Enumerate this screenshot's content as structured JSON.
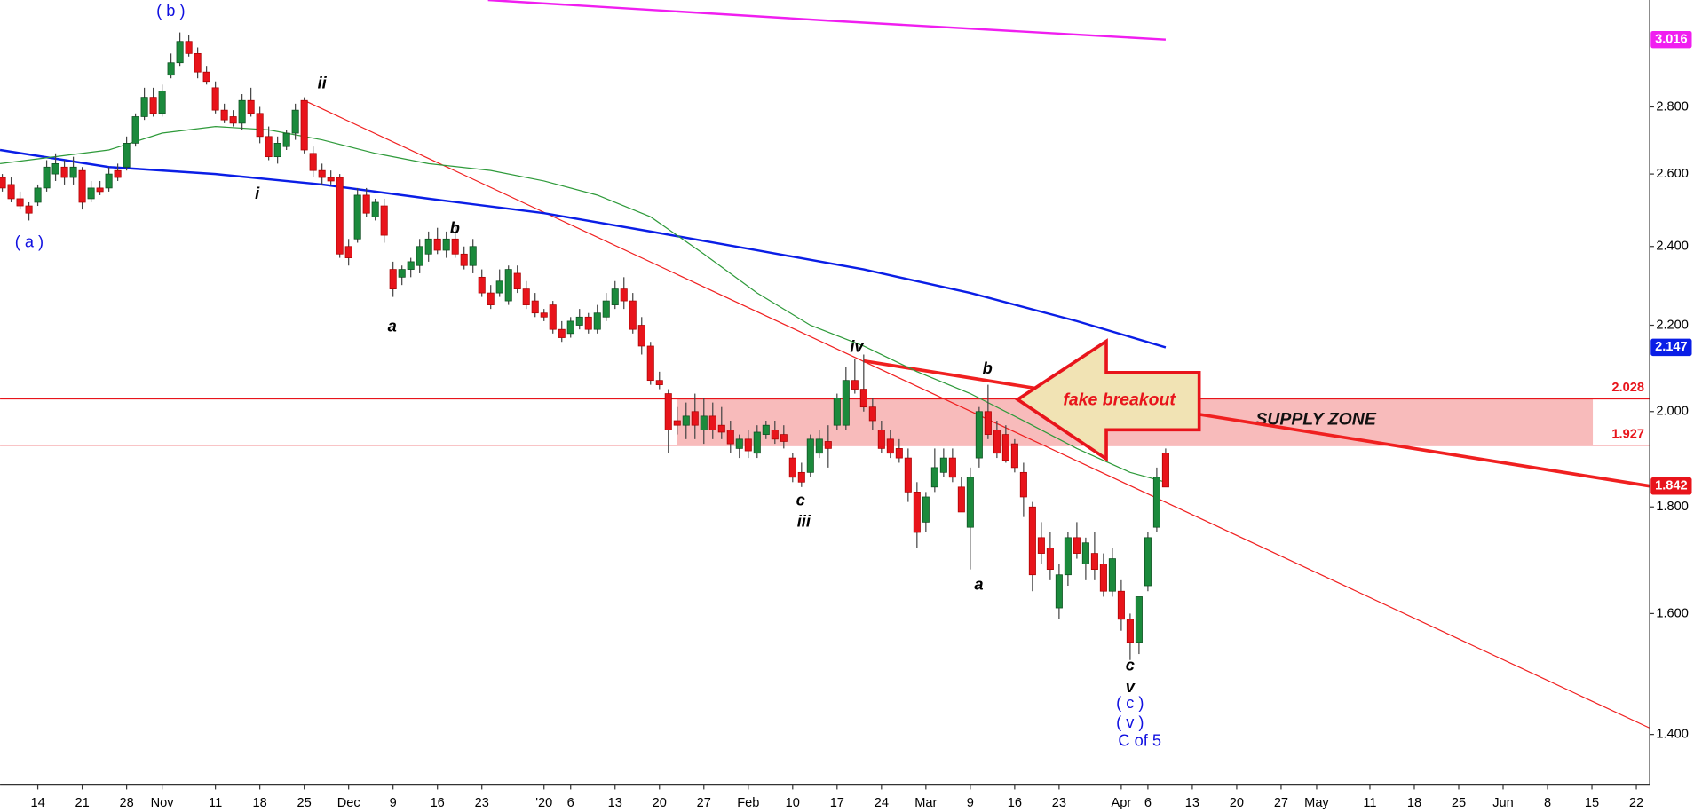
{
  "chart_data": {
    "type": "candlestick",
    "up_color": "#1b8a3c",
    "down_color": "#e8141b",
    "log_scale": true,
    "xlim": [
      -0.25,
      185.5
    ],
    "ylim": [
      1.324,
      3.151
    ],
    "xticks": [
      {
        "value": 4,
        "label": "14"
      },
      {
        "value": 9,
        "label": "21"
      },
      {
        "value": 14,
        "label": "28"
      },
      {
        "value": 18,
        "label": "Nov"
      },
      {
        "value": 24,
        "label": "11"
      },
      {
        "value": 29,
        "label": "18"
      },
      {
        "value": 34,
        "label": "25"
      },
      {
        "value": 39,
        "label": "Dec"
      },
      {
        "value": 44,
        "label": "9"
      },
      {
        "value": 49,
        "label": "16"
      },
      {
        "value": 54,
        "label": "23"
      },
      {
        "value": 61,
        "label": "'20"
      },
      {
        "value": 64,
        "label": "6"
      },
      {
        "value": 69,
        "label": "13"
      },
      {
        "value": 74,
        "label": "20"
      },
      {
        "value": 79,
        "label": "27"
      },
      {
        "value": 84,
        "label": "Feb"
      },
      {
        "value": 89,
        "label": "10"
      },
      {
        "value": 94,
        "label": "17"
      },
      {
        "value": 99,
        "label": "24"
      },
      {
        "value": 104,
        "label": "Mar"
      },
      {
        "value": 109,
        "label": "9"
      },
      {
        "value": 114,
        "label": "16"
      },
      {
        "value": 119,
        "label": "23"
      },
      {
        "value": 126,
        "label": "Apr"
      },
      {
        "value": 129,
        "label": "6"
      },
      {
        "value": 134,
        "label": "13"
      },
      {
        "value": 139,
        "label": "20"
      },
      {
        "value": 144,
        "label": "27"
      },
      {
        "value": 148,
        "label": "May"
      },
      {
        "value": 154,
        "label": "11"
      },
      {
        "value": 159,
        "label": "18"
      },
      {
        "value": 164,
        "label": "25"
      },
      {
        "value": 169,
        "label": "Jun"
      },
      {
        "value": 174,
        "label": "8"
      },
      {
        "value": 179,
        "label": "15"
      },
      {
        "value": 184,
        "label": "22"
      }
    ],
    "yticks": [
      {
        "value": 1.4,
        "label": "1.400"
      },
      {
        "value": 1.6,
        "label": "1.600"
      },
      {
        "value": 1.8,
        "label": "1.800"
      },
      {
        "value": 2.0,
        "label": "2.000"
      },
      {
        "value": 2.2,
        "label": "2.200"
      },
      {
        "value": 2.4,
        "label": "2.400"
      },
      {
        "value": 2.6,
        "label": "2.600"
      },
      {
        "value": 2.8,
        "label": "2.800"
      }
    ],
    "ohlc": [
      [
        2.59,
        2.6,
        2.55,
        2.56
      ],
      [
        2.57,
        2.59,
        2.52,
        2.53
      ],
      [
        2.53,
        2.55,
        2.5,
        2.51
      ],
      [
        2.51,
        2.52,
        2.47,
        2.49
      ],
      [
        2.52,
        2.57,
        2.51,
        2.56
      ],
      [
        2.56,
        2.64,
        2.55,
        2.62
      ],
      [
        2.6,
        2.66,
        2.58,
        2.63
      ],
      [
        2.62,
        2.64,
        2.57,
        2.59
      ],
      [
        2.59,
        2.65,
        2.57,
        2.62
      ],
      [
        2.61,
        2.62,
        2.5,
        2.52
      ],
      [
        2.53,
        2.58,
        2.52,
        2.56
      ],
      [
        2.56,
        2.58,
        2.54,
        2.55
      ],
      [
        2.56,
        2.62,
        2.55,
        2.6
      ],
      [
        2.61,
        2.63,
        2.58,
        2.59
      ],
      [
        2.62,
        2.71,
        2.61,
        2.69
      ],
      [
        2.69,
        2.78,
        2.68,
        2.77
      ],
      [
        2.77,
        2.86,
        2.76,
        2.83
      ],
      [
        2.83,
        2.86,
        2.77,
        2.78
      ],
      [
        2.78,
        2.87,
        2.77,
        2.85
      ],
      [
        2.9,
        2.97,
        2.89,
        2.94
      ],
      [
        2.94,
        3.04,
        2.93,
        3.01
      ],
      [
        3.01,
        3.03,
        2.96,
        2.97
      ],
      [
        2.97,
        2.99,
        2.89,
        2.91
      ],
      [
        2.91,
        2.93,
        2.87,
        2.88
      ],
      [
        2.86,
        2.88,
        2.78,
        2.79
      ],
      [
        2.79,
        2.81,
        2.75,
        2.76
      ],
      [
        2.77,
        2.79,
        2.74,
        2.75
      ],
      [
        2.75,
        2.84,
        2.73,
        2.82
      ],
      [
        2.82,
        2.86,
        2.77,
        2.78
      ],
      [
        2.78,
        2.8,
        2.69,
        2.71
      ],
      [
        2.71,
        2.74,
        2.64,
        2.65
      ],
      [
        2.65,
        2.71,
        2.63,
        2.69
      ],
      [
        2.68,
        2.73,
        2.67,
        2.72
      ],
      [
        2.72,
        2.81,
        2.7,
        2.79
      ],
      [
        2.82,
        2.83,
        2.66,
        2.67
      ],
      [
        2.66,
        2.68,
        2.59,
        2.61
      ],
      [
        2.61,
        2.63,
        2.57,
        2.59
      ],
      [
        2.59,
        2.61,
        2.57,
        2.58
      ],
      [
        2.59,
        2.6,
        2.37,
        2.38
      ],
      [
        2.4,
        2.42,
        2.35,
        2.37
      ],
      [
        2.42,
        2.56,
        2.41,
        2.54
      ],
      [
        2.54,
        2.56,
        2.48,
        2.49
      ],
      [
        2.48,
        2.53,
        2.47,
        2.52
      ],
      [
        2.51,
        2.53,
        2.41,
        2.43
      ],
      [
        2.34,
        2.36,
        2.27,
        2.29
      ],
      [
        2.32,
        2.35,
        2.3,
        2.34
      ],
      [
        2.34,
        2.37,
        2.32,
        2.36
      ],
      [
        2.35,
        2.42,
        2.33,
        2.4
      ],
      [
        2.38,
        2.44,
        2.36,
        2.42
      ],
      [
        2.42,
        2.45,
        2.38,
        2.39
      ],
      [
        2.39,
        2.44,
        2.37,
        2.42
      ],
      [
        2.42,
        2.46,
        2.37,
        2.38
      ],
      [
        2.38,
        2.4,
        2.34,
        2.35
      ],
      [
        2.35,
        2.42,
        2.33,
        2.4
      ],
      [
        2.32,
        2.34,
        2.27,
        2.28
      ],
      [
        2.28,
        2.3,
        2.24,
        2.25
      ],
      [
        2.28,
        2.34,
        2.27,
        2.31
      ],
      [
        2.26,
        2.35,
        2.25,
        2.34
      ],
      [
        2.33,
        2.35,
        2.28,
        2.29
      ],
      [
        2.29,
        2.31,
        2.24,
        2.25
      ],
      [
        2.26,
        2.28,
        2.22,
        2.23
      ],
      [
        2.23,
        2.24,
        2.21,
        2.22
      ],
      [
        2.25,
        2.26,
        2.18,
        2.19
      ],
      [
        2.19,
        2.21,
        2.16,
        2.17
      ],
      [
        2.18,
        2.22,
        2.17,
        2.21
      ],
      [
        2.2,
        2.24,
        2.19,
        2.22
      ],
      [
        2.22,
        2.23,
        2.18,
        2.19
      ],
      [
        2.19,
        2.25,
        2.18,
        2.23
      ],
      [
        2.22,
        2.28,
        2.21,
        2.26
      ],
      [
        2.25,
        2.31,
        2.24,
        2.29
      ],
      [
        2.29,
        2.32,
        2.24,
        2.26
      ],
      [
        2.26,
        2.28,
        2.18,
        2.19
      ],
      [
        2.2,
        2.22,
        2.13,
        2.15
      ],
      [
        2.15,
        2.16,
        2.06,
        2.07
      ],
      [
        2.07,
        2.09,
        2.05,
        2.06
      ],
      [
        2.04,
        2.05,
        1.91,
        1.96
      ],
      [
        1.98,
        2.01,
        1.95,
        1.97
      ],
      [
        1.97,
        2.02,
        1.94,
        1.99
      ],
      [
        2.0,
        2.04,
        1.94,
        1.97
      ],
      [
        1.96,
        2.03,
        1.93,
        1.99
      ],
      [
        1.99,
        2.02,
        1.94,
        1.96
      ],
      [
        1.97,
        2.01,
        1.94,
        1.955
      ],
      [
        1.96,
        1.98,
        1.91,
        1.93
      ],
      [
        1.92,
        1.95,
        1.9,
        1.94
      ],
      [
        1.94,
        1.96,
        1.9,
        1.915
      ],
      [
        1.91,
        1.97,
        1.9,
        1.955
      ],
      [
        1.95,
        1.98,
        1.94,
        1.97
      ],
      [
        1.96,
        1.98,
        1.93,
        1.94
      ],
      [
        1.95,
        1.97,
        1.92,
        1.935
      ],
      [
        1.9,
        1.91,
        1.85,
        1.86
      ],
      [
        1.87,
        1.89,
        1.84,
        1.85
      ],
      [
        1.87,
        1.95,
        1.86,
        1.94
      ],
      [
        1.91,
        1.96,
        1.9,
        1.94
      ],
      [
        1.935,
        1.97,
        1.88,
        1.92
      ],
      [
        1.97,
        2.04,
        1.96,
        2.03
      ],
      [
        1.97,
        2.1,
        1.96,
        2.07
      ],
      [
        2.07,
        2.12,
        2.04,
        2.05
      ],
      [
        2.05,
        2.13,
        2.0,
        2.01
      ],
      [
        2.01,
        2.03,
        1.96,
        1.98
      ],
      [
        1.96,
        1.98,
        1.91,
        1.92
      ],
      [
        1.94,
        1.96,
        1.9,
        1.91
      ],
      [
        1.92,
        1.94,
        1.89,
        1.9
      ],
      [
        1.9,
        1.92,
        1.81,
        1.83
      ],
      [
        1.83,
        1.85,
        1.72,
        1.75
      ],
      [
        1.77,
        1.83,
        1.75,
        1.82
      ],
      [
        1.84,
        1.92,
        1.83,
        1.88
      ],
      [
        1.87,
        1.92,
        1.86,
        1.9
      ],
      [
        1.9,
        1.92,
        1.85,
        1.86
      ],
      [
        1.84,
        1.86,
        1.79,
        1.79
      ],
      [
        1.76,
        1.88,
        1.68,
        1.86
      ],
      [
        1.9,
        2.01,
        1.88,
        2.0
      ],
      [
        2.0,
        2.06,
        1.94,
        1.95
      ],
      [
        1.96,
        1.98,
        1.9,
        1.91
      ],
      [
        1.95,
        1.97,
        1.89,
        1.895
      ],
      [
        1.93,
        1.94,
        1.87,
        1.88
      ],
      [
        1.87,
        1.89,
        1.78,
        1.82
      ],
      [
        1.8,
        1.81,
        1.64,
        1.67
      ],
      [
        1.74,
        1.77,
        1.69,
        1.71
      ],
      [
        1.72,
        1.75,
        1.66,
        1.68
      ],
      [
        1.61,
        1.69,
        1.59,
        1.67
      ],
      [
        1.67,
        1.75,
        1.65,
        1.74
      ],
      [
        1.74,
        1.77,
        1.7,
        1.71
      ],
      [
        1.69,
        1.74,
        1.66,
        1.73
      ],
      [
        1.71,
        1.75,
        1.66,
        1.68
      ],
      [
        1.69,
        1.71,
        1.63,
        1.64
      ],
      [
        1.64,
        1.72,
        1.63,
        1.7
      ],
      [
        1.64,
        1.66,
        1.57,
        1.59
      ],
      [
        1.59,
        1.6,
        1.52,
        1.55
      ],
      [
        1.55,
        1.63,
        1.53,
        1.63
      ],
      [
        1.65,
        1.75,
        1.64,
        1.74
      ],
      [
        1.76,
        1.88,
        1.75,
        1.86
      ],
      [
        1.91,
        1.92,
        1.84,
        1.84
      ]
    ],
    "lines": [
      {
        "color": "#0a1ee6",
        "width": 2,
        "x": [
          -0.25,
          12,
          24,
          36,
          48,
          61,
          73,
          85,
          97,
          109,
          121,
          131
        ],
        "values": [
          2.67,
          2.62,
          2.6,
          2.57,
          2.53,
          2.49,
          2.44,
          2.39,
          2.34,
          2.28,
          2.21,
          2.147
        ]
      },
      {
        "color": "#2e9a3a",
        "width": 1,
        "x": [
          -0.25,
          12,
          18,
          24,
          30,
          36,
          42,
          48,
          55,
          61,
          67,
          73,
          79,
          85,
          91,
          97,
          103,
          109,
          115,
          121,
          127,
          131
        ],
        "values": [
          2.63,
          2.67,
          2.72,
          2.74,
          2.73,
          2.7,
          2.66,
          2.63,
          2.61,
          2.58,
          2.54,
          2.48,
          2.38,
          2.28,
          2.2,
          2.15,
          2.09,
          2.04,
          1.98,
          1.92,
          1.87,
          1.85
        ]
      },
      {
        "color": "#f01ef0",
        "width": 2,
        "x": [
          54.7,
          93,
          131
        ],
        "values": [
          3.151,
          3.08,
          3.016
        ]
      }
    ],
    "trendlines": [
      {
        "color": "#f02020",
        "width": 1,
        "x": [
          34,
          185.5
        ],
        "values": [
          2.82,
          1.41
        ]
      },
      {
        "color": "#f02020",
        "width": 3,
        "x": [
          97,
          185.5
        ],
        "values": [
          2.115,
          1.842
        ]
      }
    ],
    "levels": [
      2.028,
      1.927
    ],
    "level_color": "#e8141b",
    "zone": {
      "label": "SUPPLY ZONE",
      "x": [
        76,
        179.1
      ],
      "color": "#f7b4b4"
    },
    "callout": "fake breakout",
    "annotations": [
      {
        "text": "( b )",
        "color": "#1010e0"
      },
      {
        "text": "( a )",
        "color": "#1010e0"
      },
      {
        "text": "ii",
        "color": "#000000"
      },
      {
        "text": "i",
        "color": "#000000"
      },
      {
        "text": "b",
        "color": "#000000"
      },
      {
        "text": "a",
        "color": "#000000"
      },
      {
        "text": "iv",
        "color": "#000000"
      },
      {
        "text": "c",
        "color": "#000000"
      },
      {
        "text": "iii",
        "color": "#000000"
      },
      {
        "text": "b",
        "color": "#000000"
      },
      {
        "text": "a",
        "color": "#000000"
      },
      {
        "text": "c",
        "color": "#000000"
      },
      {
        "text": "v",
        "color": "#000000"
      },
      {
        "text": "( c )",
        "color": "#1010e0"
      },
      {
        "text": "( v )",
        "color": "#1010e0"
      },
      {
        "text": "C of 5",
        "color": "#1010e0"
      }
    ]
  }
}
